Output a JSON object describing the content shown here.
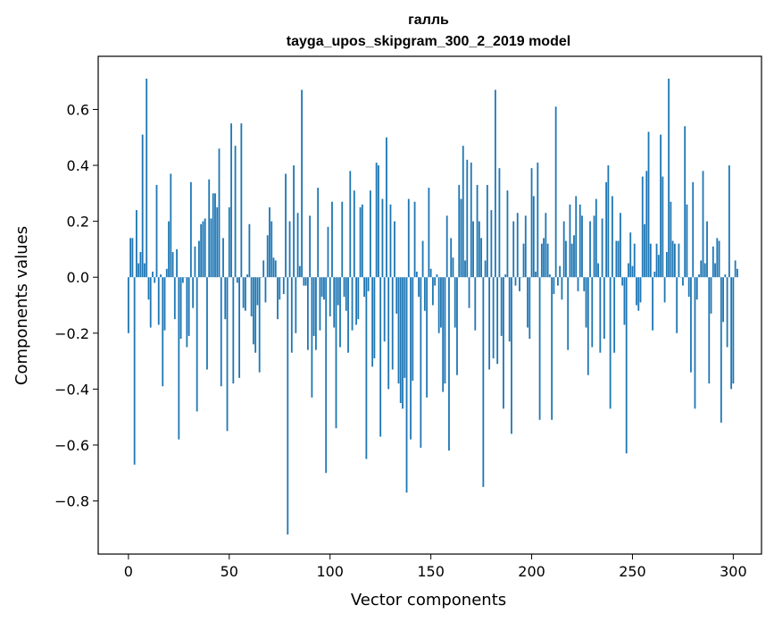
{
  "chart_data": {
    "type": "bar",
    "title": "галль",
    "subtitle": "tayga_upos_skipgram_300_2_2019 model",
    "xlabel": "Vector components",
    "ylabel": "Components values",
    "xlim": [
      -15,
      314
    ],
    "ylim": [
      -0.99,
      0.79
    ],
    "xticks": [
      0,
      50,
      100,
      150,
      200,
      250,
      300
    ],
    "xtick_labels": [
      "0",
      "50",
      "100",
      "150",
      "200",
      "250",
      "300"
    ],
    "yticks": [
      -0.8,
      -0.6,
      -0.4,
      -0.2,
      0.0,
      0.2,
      0.4,
      0.6
    ],
    "ytick_labels": [
      "−0.8",
      "−0.6",
      "−0.4",
      "−0.2",
      "0.0",
      "0.2",
      "0.4",
      "0.6"
    ],
    "grid": false,
    "bar_color": "#1f77b4",
    "x_start": 0,
    "values": [
      -0.2,
      0.14,
      0.14,
      -0.67,
      0.24,
      0.05,
      0.09,
      0.51,
      0.05,
      0.71,
      -0.08,
      -0.18,
      0.02,
      -0.02,
      0.33,
      -0.17,
      0.01,
      -0.39,
      -0.19,
      0.03,
      0.2,
      0.37,
      0.09,
      -0.15,
      0.1,
      -0.58,
      -0.22,
      -0.02,
      0.0,
      -0.25,
      -0.21,
      0.34,
      -0.11,
      0.11,
      -0.48,
      0.13,
      0.19,
      0.2,
      0.21,
      -0.33,
      0.35,
      0.21,
      0.3,
      0.3,
      0.25,
      0.46,
      -0.39,
      0.14,
      -0.15,
      -0.55,
      0.25,
      0.55,
      -0.38,
      0.47,
      -0.02,
      -0.36,
      0.55,
      -0.11,
      -0.12,
      0.01,
      0.19,
      -0.14,
      -0.24,
      -0.27,
      -0.1,
      -0.34,
      0.0,
      0.06,
      -0.09,
      0.15,
      0.25,
      0.2,
      0.07,
      0.06,
      -0.15,
      -0.08,
      0.0,
      -0.06,
      0.37,
      -0.92,
      0.2,
      -0.27,
      0.4,
      -0.2,
      0.23,
      0.04,
      0.67,
      -0.03,
      -0.03,
      -0.26,
      0.22,
      -0.43,
      -0.21,
      -0.26,
      0.32,
      -0.19,
      -0.07,
      -0.08,
      -0.7,
      0.18,
      -0.14,
      0.27,
      -0.18,
      -0.54,
      -0.1,
      -0.25,
      0.27,
      -0.07,
      -0.12,
      -0.27,
      0.38,
      -0.19,
      0.31,
      -0.17,
      -0.15,
      0.25,
      0.26,
      -0.07,
      -0.65,
      -0.05,
      0.31,
      -0.32,
      -0.29,
      0.41,
      0.4,
      -0.57,
      0.28,
      -0.23,
      0.5,
      -0.4,
      0.26,
      -0.33,
      0.2,
      -0.13,
      -0.38,
      -0.45,
      -0.47,
      -0.36,
      -0.77,
      0.28,
      -0.58,
      -0.37,
      0.27,
      0.02,
      -0.07,
      -0.61,
      0.13,
      -0.12,
      -0.43,
      0.32,
      0.03,
      -0.1,
      -0.03,
      0.01,
      -0.2,
      -0.18,
      -0.41,
      -0.38,
      0.22,
      -0.62,
      0.14,
      0.07,
      -0.18,
      -0.35,
      0.33,
      0.28,
      0.47,
      0.06,
      0.42,
      -0.11,
      0.41,
      0.2,
      -0.19,
      0.33,
      0.2,
      0.14,
      -0.75,
      0.06,
      0.33,
      -0.33,
      0.24,
      -0.29,
      0.67,
      -0.31,
      0.39,
      -0.21,
      -0.47,
      0.01,
      0.31,
      -0.23,
      -0.56,
      0.2,
      -0.03,
      0.23,
      -0.05,
      0.0,
      0.12,
      0.22,
      -0.18,
      -0.22,
      0.39,
      0.29,
      0.02,
      0.41,
      -0.51,
      0.12,
      0.14,
      0.23,
      0.12,
      0.01,
      -0.51,
      -0.06,
      0.61,
      -0.03,
      0.04,
      -0.08,
      0.2,
      0.13,
      -0.26,
      0.26,
      0.12,
      0.15,
      0.29,
      -0.05,
      0.26,
      0.22,
      -0.05,
      -0.18,
      -0.35,
      0.2,
      -0.25,
      0.22,
      0.28,
      0.05,
      -0.27,
      0.21,
      -0.22,
      0.34,
      0.4,
      -0.47,
      0.29,
      -0.27,
      0.13,
      0.13,
      0.23,
      -0.03,
      -0.17,
      -0.63,
      0.05,
      0.16,
      0.04,
      0.12,
      -0.1,
      -0.12,
      -0.09,
      0.36,
      0.19,
      0.38,
      0.52,
      0.12,
      -0.19,
      0.02,
      0.12,
      0.08,
      0.51,
      0.36,
      -0.09,
      0.09,
      0.71,
      0.27,
      0.13,
      0.12,
      -0.2,
      0.12,
      0.0,
      -0.03,
      0.54,
      0.26,
      -0.07,
      -0.34,
      0.34,
      -0.47,
      -0.08,
      0.01,
      0.06,
      0.38,
      0.05,
      0.2,
      -0.38,
      -0.13,
      0.11,
      0.05,
      0.14,
      0.13,
      -0.52,
      -0.16,
      0.01,
      -0.25,
      0.4,
      -0.4,
      -0.38,
      0.06,
      0.03
    ]
  }
}
